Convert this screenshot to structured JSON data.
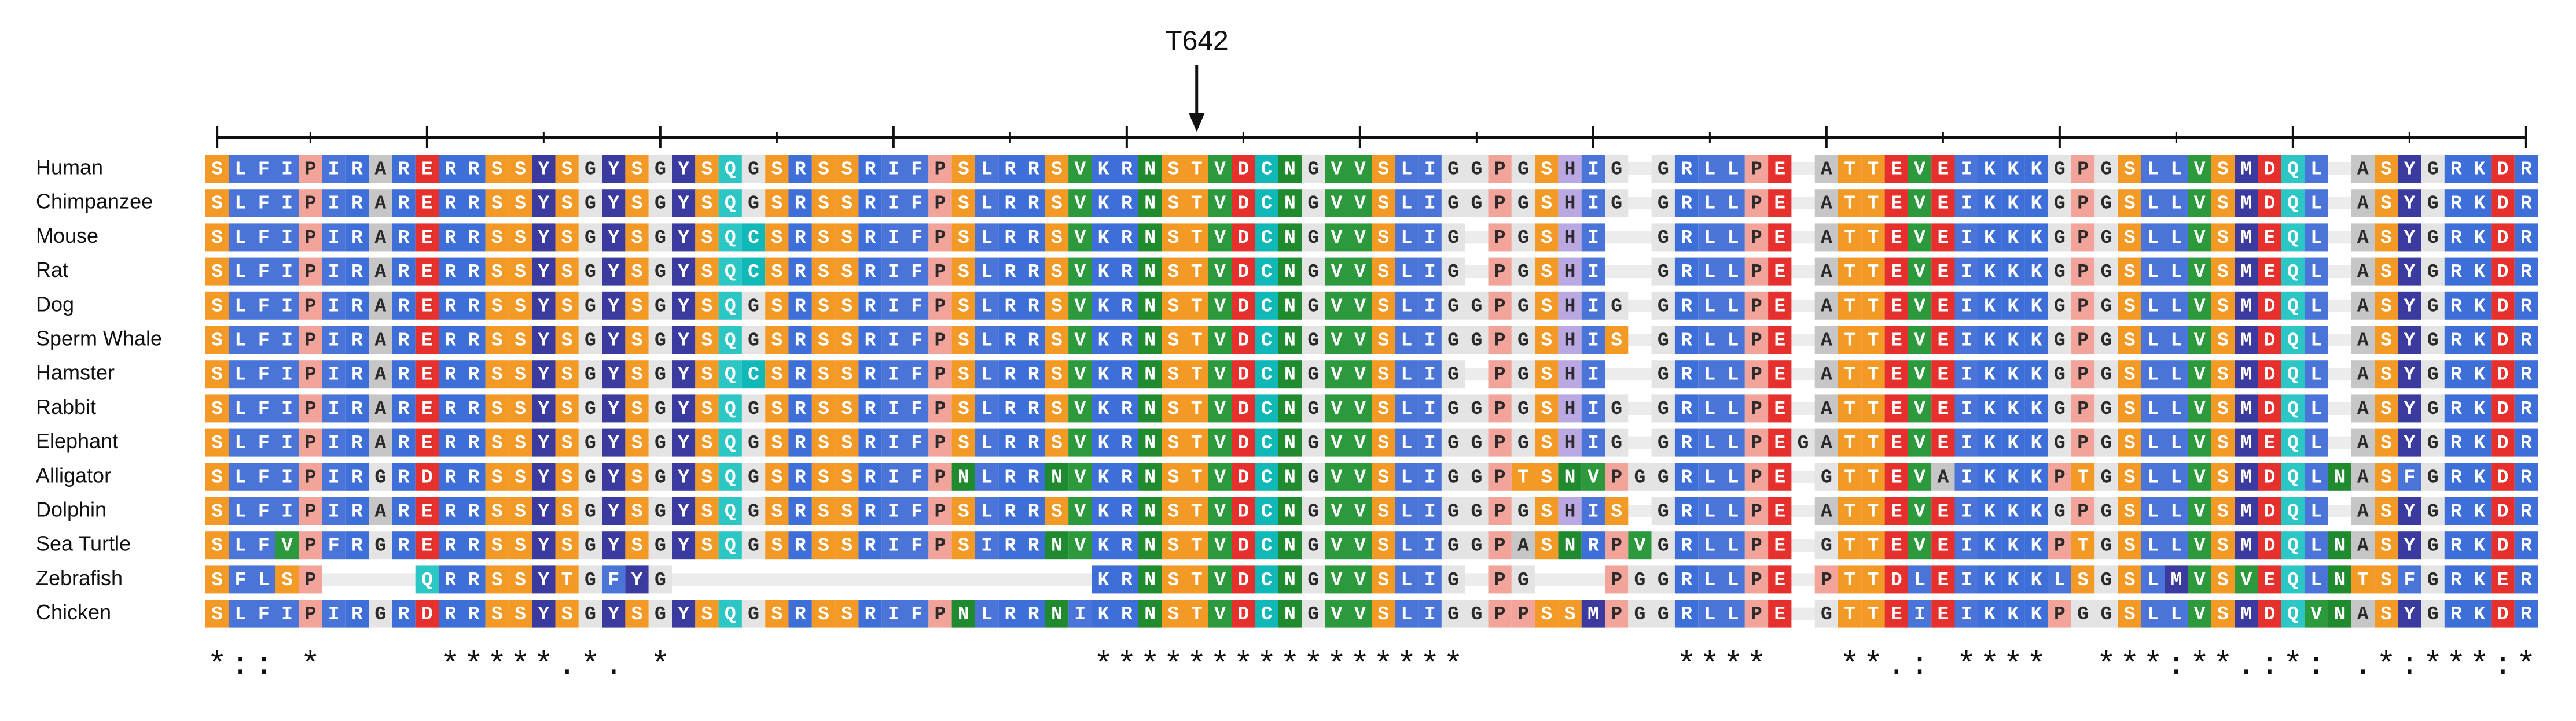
{
  "annotation": "T642",
  "rows": [
    {
      "species": "Human",
      "sequence": "SLFIPIRARERRSSYSGYSGYSQGSRSSRIFPSLRRSVKRNSTVDCNGVVSLIGGPGSHIG GRLLPE ATTEVEIKKKGPGSLLVSMDQL ASYGRKDR"
    },
    {
      "species": "Chimpanzee",
      "sequence": "SLFIPIRARERRSSYSGYSGYSQGSRSSRIFPSLRRSVKRNSTVDCNGVVSLIGGPGSHIG GRLLPE ATTEVEIKKKGPGSLLVSMDQL ASYGRKDR"
    },
    {
      "species": "Mouse",
      "sequence": "SLFIPIRARERRSSYSGYSGYSQCSRSSRIFPSLRRSVKRNSTVDCNGVVSLIG PGSHI  GRLLPE ATTEVEIKKKGPGSLLVSMEQL ASYGRKDR"
    },
    {
      "species": "Rat",
      "sequence": "SLFIPIRARERRSSYSGYSGYSQCSRSSRIFPSLRRSVKRNSTVDCNGVVSLIG PGSHI  GRLLPE ATTEVEIKKKGPGSLLVSMEQL ASYGRKDR"
    },
    {
      "species": "Dog",
      "sequence": "SLFIPIRARERRSSYSGYSGYSQGSRSSRIFPSLRRSVKRNSTVDCNGVVSLIGGPGSHIG GRLLPE ATTEVEIKKKGPGSLLVSMDQL ASYGRKDR"
    },
    {
      "species": "Sperm Whale",
      "sequence": "SLFIPIRARERRSSYSGYSGYSQGSRSSRIFPSLRRSVKRNSTVDCNGVVSLIGGPGSHIS GRLLPE ATTEVEIKKKGPGSLLVSMDQL ASYGRKDR"
    },
    {
      "species": "Hamster",
      "sequence": "SLFIPIRARERRSSYSGYSGYSQCSRSSRIFPSLRRSVKRNSTVDCNGVVSLIG PGSHI  GRLLPE ATTEVEIKKKGPGSLLVSMDQL ASYGRKDR"
    },
    {
      "species": "Rabbit",
      "sequence": "SLFIPIRARERRSSYSGYSGYSQGSRSSRIFPSLRRSVKRNSTVDCNGVVSLIGGPGSHIG GRLLPE ATTEVEIKKKGPGSLLVSMDQL ASYGRKDR"
    },
    {
      "species": "Elephant",
      "sequence": "SLFIPIRARERRSSYSGYSGYSQGSRSSRIFPSLRRSVKRNSTVDCNGVVSLIGGPGSHIG GRLLPEGATTEVEIKKKGPGSLLVSMEQL ASYGRKDR"
    },
    {
      "species": "Alligator",
      "sequence": "SLFIPIRGRDRRSSYSGYSGYSQGSRSSRIFPNLRRNVKRNSTVDCNGVVSLIGGPTSNVPGGRLLPE GTTEVAIKKKPTGSLLVSMDQLNASFGRKDR"
    },
    {
      "species": "Dolphin",
      "sequence": "SLFIPIRARERRSSYSGYSGYSQGSRSSRIFPSLRRSVKRNSTVDCNGVVSLIGGPGSHIS GRLLPE ATTEVEIKKKGPGSLLVSMDQL ASYGRKDR"
    },
    {
      "species": "Sea Turtle",
      "sequence": "SLFVPFRGRERRSSYSGYSGYSQGSRSSRIFPSIRRNVKRNSTVDCNGVVSLIGGPASNRPVGRLLPE GTTEVEIKKKPTGSLLVSMDQLNASYGRKDR"
    },
    {
      "species": "Zebrafish",
      "sequence": "SFLSP    QRRSSYTGFYG                  KRNSTVDCNGVVSLIG PG   PGGRLLPE PTTDLEIKKKLSGSLMVSVEQLNTSFGRKER"
    },
    {
      "species": "Chicken",
      "sequence": "SLFIPIRGRDRRSSYSGYSGYSQGSRSSRIFPNLRRNIKRNSTVDCNGVVSLIGGPPSSMPGGRLLPE GTTEIEIKKKPGGSLLVSMDQVNASYGRKDR"
    }
  ],
  "conservation": "*:: *     *****.*. *                  ****************         ****   **.: ****  ***:**.:*: .*:***:*"
}
